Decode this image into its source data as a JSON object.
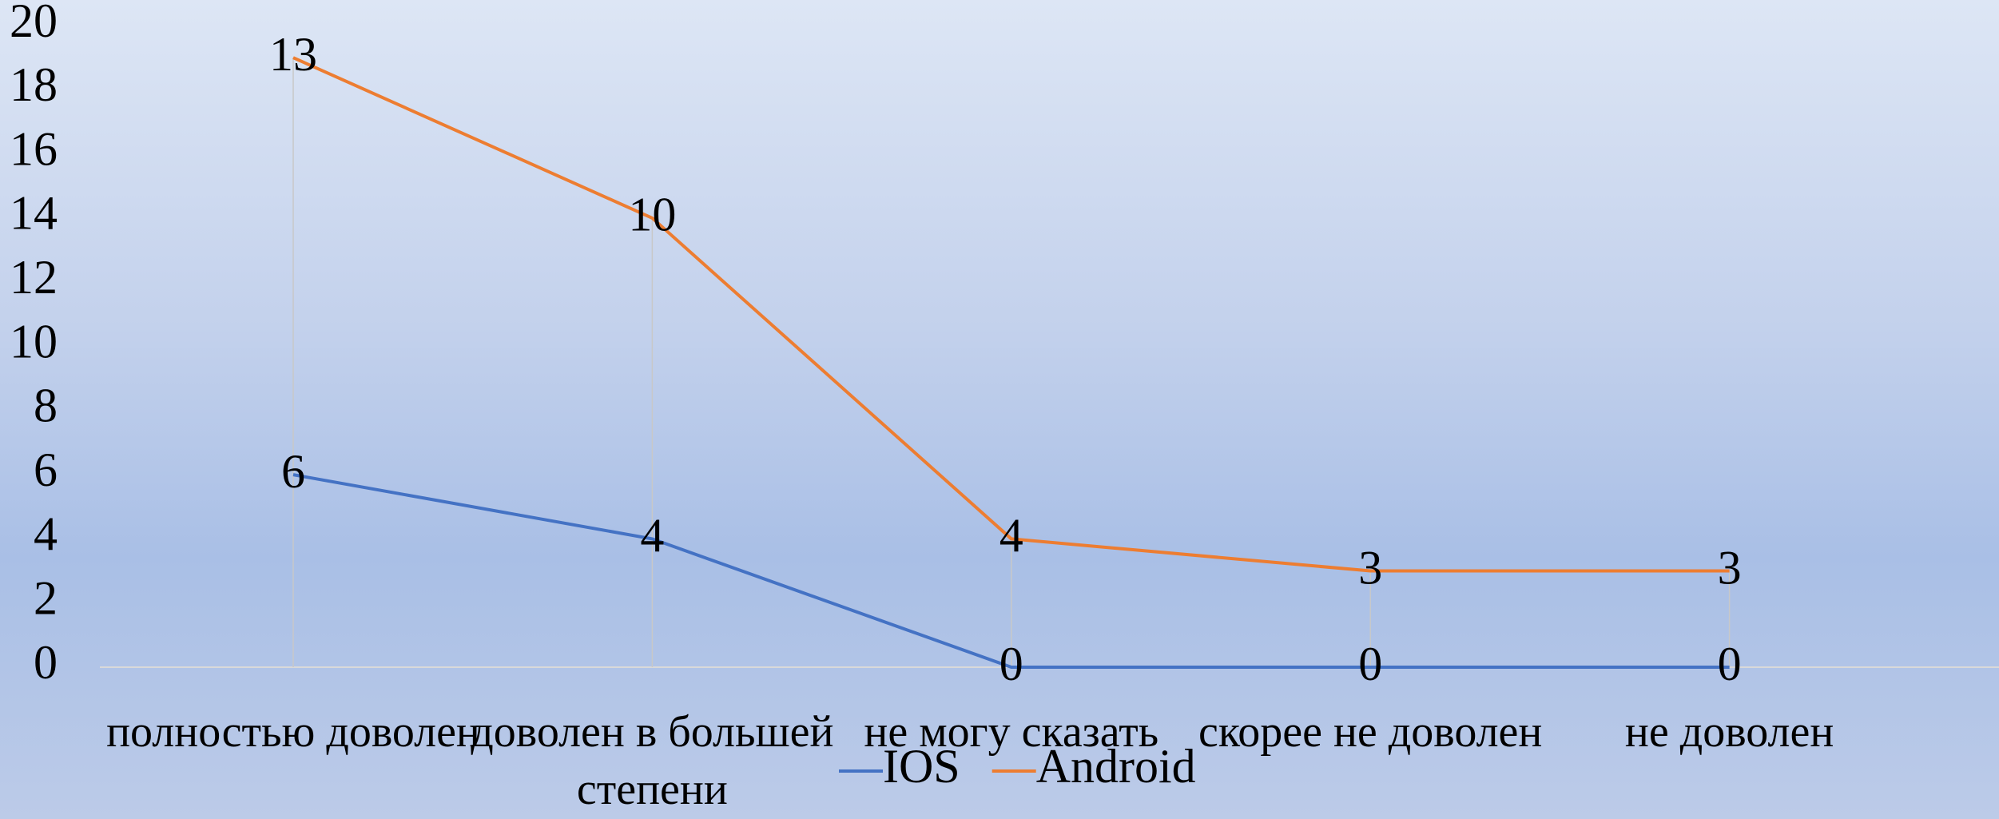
{
  "chart_data": {
    "type": "line",
    "stacked": true,
    "categories": [
      "полностью доволен",
      "доволен в большей степени",
      "не могу сказать",
      "скорее не доволен",
      "не доволен"
    ],
    "series": [
      {
        "name": "IOS",
        "color": "#4472c4",
        "values": [
          6,
          4,
          0,
          0,
          0
        ]
      },
      {
        "name": "Android",
        "color": "#ed7d31",
        "values": [
          13,
          10,
          4,
          3,
          3
        ]
      }
    ],
    "ylim": [
      0,
      20
    ],
    "yticks": [
      0,
      2,
      4,
      6,
      8,
      10,
      12,
      14,
      16,
      18,
      20
    ],
    "legend": "bottom"
  }
}
